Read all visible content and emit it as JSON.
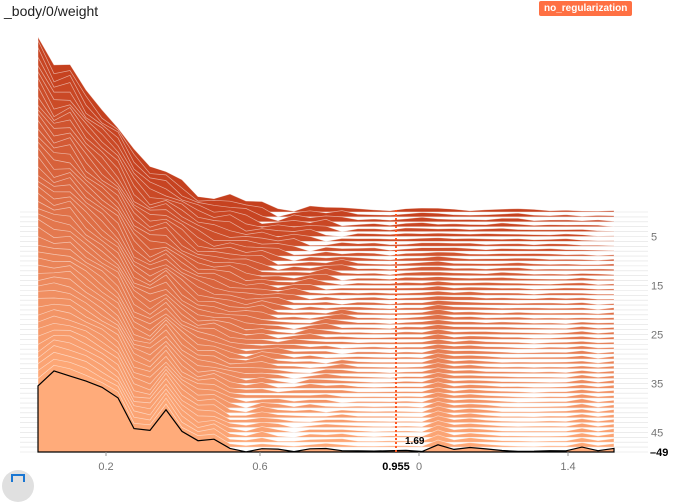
{
  "chart_title": "_body/0/weight",
  "run_label": "no_regularization",
  "colors": {
    "run": "#ff7043",
    "front": "#ffab7a",
    "back": "#c5401e",
    "grid": "#e0e0e0"
  },
  "chart_data": {
    "type": "histogram",
    "mode": "offset",
    "x_ticks": [
      "0.2",
      "0.6",
      "0",
      "1.4"
    ],
    "y_ticks": [
      "5",
      "15",
      "25",
      "35",
      "45"
    ],
    "step_range": [
      0,
      49
    ],
    "hover": {
      "step": "49",
      "x": "0.955",
      "value": "1.69"
    },
    "front_series": {
      "step": 49,
      "values": [
        16,
        19.5,
        18.5,
        17.5,
        15.5,
        13,
        5.5,
        5,
        10.5,
        5,
        2.5,
        3,
        0.5,
        0,
        1,
        0.5,
        0,
        0.5,
        0.5,
        0.5,
        0.2,
        0.1,
        0.2,
        0.2,
        0,
        1.69,
        0.5,
        1,
        0.6,
        0.2,
        0.1,
        0.1,
        0.2,
        0.2,
        1,
        0.2,
        0.8
      ]
    }
  },
  "corner_button_icon": "fit-domain-icon"
}
